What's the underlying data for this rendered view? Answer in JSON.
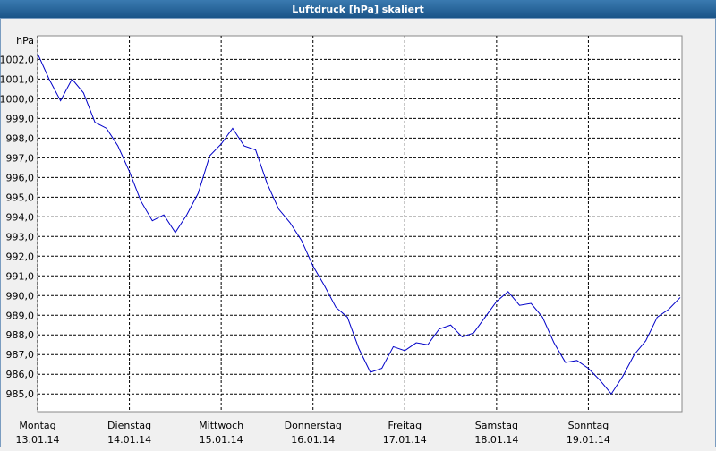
{
  "chart_data": {
    "type": "line",
    "title": "Luftdruck [hPa] skaliert",
    "y_label": "hPa",
    "x": [
      0,
      3,
      6,
      9,
      12,
      15,
      18,
      21,
      24,
      27,
      30,
      33,
      36,
      39,
      42,
      45,
      48,
      51,
      54,
      57,
      60,
      63,
      66,
      69,
      72,
      75,
      78,
      81,
      84,
      87,
      90,
      93,
      96,
      99,
      102,
      105,
      108,
      111,
      114,
      117,
      120,
      123,
      126,
      129,
      132,
      135,
      138,
      141,
      144,
      147,
      150,
      153,
      156,
      159,
      162,
      165,
      168
    ],
    "series": [
      {
        "name": "Luftdruck",
        "color": "#0000c8",
        "values": [
          1002.3,
          1001.0,
          999.9,
          1001.0,
          1000.3,
          998.8,
          998.5,
          997.6,
          996.3,
          994.8,
          993.8,
          994.1,
          993.2,
          994.1,
          995.2,
          997.1,
          997.7,
          998.5,
          997.6,
          997.4,
          995.7,
          994.4,
          993.7,
          992.8,
          991.5,
          990.5,
          989.4,
          988.9,
          987.3,
          986.1,
          986.3,
          987.4,
          987.2,
          987.6,
          987.5,
          988.3,
          988.5,
          987.9,
          988.1,
          988.9,
          989.7,
          990.2,
          989.5,
          989.6,
          988.9,
          987.6,
          986.6,
          986.7,
          986.3,
          985.7,
          985.0,
          985.9,
          987.0,
          987.7,
          988.9,
          989.3,
          989.9
        ]
      }
    ],
    "xlim": [
      0,
      168
    ],
    "xticks": [
      {
        "value": 0,
        "label": "Montag",
        "date": "13.01.14"
      },
      {
        "value": 24,
        "label": "Dienstag",
        "date": "14.01.14"
      },
      {
        "value": 48,
        "label": "Mittwoch",
        "date": "15.01.14"
      },
      {
        "value": 72,
        "label": "Donnerstag",
        "date": "16.01.14"
      },
      {
        "value": 96,
        "label": "Freitag",
        "date": "17.01.14"
      },
      {
        "value": 120,
        "label": "Samstag",
        "date": "18.01.14"
      },
      {
        "value": 144,
        "label": "Sonntag",
        "date": "19.01.14"
      }
    ],
    "ylim": [
      984.1,
      1003.2
    ],
    "yticks": [
      {
        "value": 985,
        "label": "985,0"
      },
      {
        "value": 986,
        "label": "986,0"
      },
      {
        "value": 987,
        "label": "987,0"
      },
      {
        "value": 988,
        "label": "988,0"
      },
      {
        "value": 989,
        "label": "989,0"
      },
      {
        "value": 990,
        "label": "990,0"
      },
      {
        "value": 991,
        "label": "991,0"
      },
      {
        "value": 992,
        "label": "992,0"
      },
      {
        "value": 993,
        "label": "993,0"
      },
      {
        "value": 994,
        "label": "994,0"
      },
      {
        "value": 995,
        "label": "995,0"
      },
      {
        "value": 996,
        "label": "996,0"
      },
      {
        "value": 997,
        "label": "997,0"
      },
      {
        "value": 998,
        "label": "998,0"
      },
      {
        "value": 999,
        "label": "999,0"
      },
      {
        "value": 1000,
        "label": "1000,0"
      },
      {
        "value": 1001,
        "label": "1001,0"
      },
      {
        "value": 1002,
        "label": "1002,0"
      }
    ],
    "grid": true
  }
}
